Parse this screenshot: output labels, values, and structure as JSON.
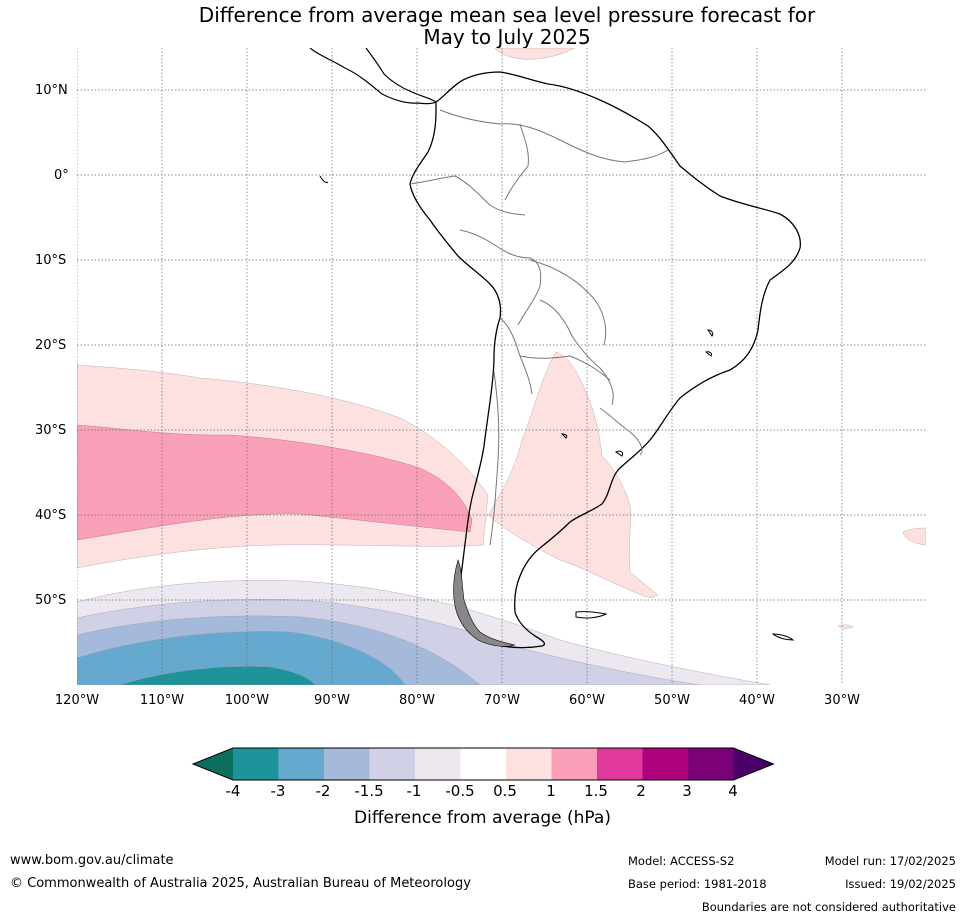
{
  "title_line1": "Difference from average mean sea level pressure forecast for",
  "title_line2": "May to July 2025",
  "latitude_labels": [
    "10°N",
    "0°",
    "10°S",
    "20°S",
    "30°S",
    "40°S",
    "50°S"
  ],
  "longitude_labels": [
    "120°W",
    "110°W",
    "100°W",
    "90°W",
    "80°W",
    "70°W",
    "60°W",
    "50°W",
    "40°W",
    "30°W"
  ],
  "colorbar": {
    "label": "Difference from average (hPa)",
    "ticks": [
      "-4",
      "-3",
      "-2",
      "-1.5",
      "-1",
      "-0.5",
      "0.5",
      "1",
      "1.5",
      "2",
      "3",
      "4"
    ],
    "colors": [
      "#1e9399",
      "#65a9cf",
      "#a5b9da",
      "#d0d1e6",
      "#ede8f0",
      "#ffffff",
      "#fde0e0",
      "#f9a0b8",
      "#e0399c",
      "#ae017e",
      "#7a0177"
    ],
    "under_color": "#0b6f5e",
    "over_color": "#4a0068"
  },
  "footer": {
    "url": "www.bom.gov.au/climate",
    "copyright": "© Commonwealth of Australia 2025, Australian Bureau of Meteorology",
    "model": "Model: ACCESS-S2",
    "base_period": "Base period: 1981-2018",
    "model_run": "Model run: 17/02/2025",
    "issued": "Issued: 19/02/2025",
    "boundaries": "Boundaries are not considered authoritative"
  }
}
